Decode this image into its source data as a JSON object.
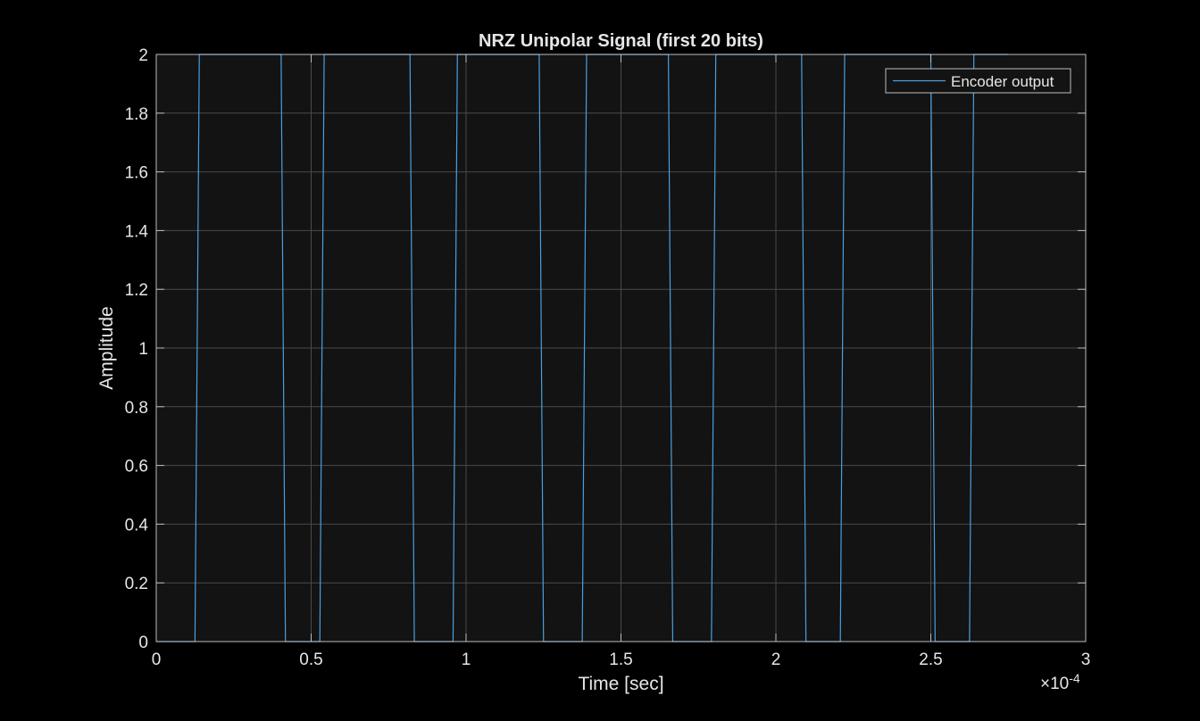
{
  "chart_data": {
    "type": "line",
    "title": "NRZ Unipolar Signal (first 20 bits)",
    "xlabel": "Time [sec]",
    "ylabel": "Amplitude",
    "x_exponent_label": "×10",
    "x_exponent_power": "-4",
    "xlim": [
      0,
      3
    ],
    "ylim": [
      0,
      2
    ],
    "x_ticks": [
      0,
      0.5,
      1,
      1.5,
      2,
      2.5,
      3
    ],
    "x_tick_labels": [
      "0",
      "0.5",
      "1",
      "1.5",
      "2",
      "2.5",
      "3"
    ],
    "y_ticks": [
      0,
      0.2,
      0.4,
      0.6,
      0.8,
      1,
      1.2,
      1.4,
      1.6,
      1.8,
      2
    ],
    "y_tick_labels": [
      "0",
      "0.2",
      "0.4",
      "0.6",
      "0.8",
      "1",
      "1.2",
      "1.4",
      "1.6",
      "1.8",
      "2"
    ],
    "grid": true,
    "legend_position": "top-right",
    "series": [
      {
        "name": "Encoder output",
        "color": "#4a9fe0",
        "x": [
          0,
          0.125,
          0.139,
          0.403,
          0.417,
          0.528,
          0.542,
          0.819,
          0.833,
          0.958,
          0.972,
          1.236,
          1.25,
          1.375,
          1.389,
          1.653,
          1.667,
          1.792,
          1.806,
          2.083,
          2.097,
          2.208,
          2.222,
          2.5,
          2.514,
          2.625,
          2.639,
          2.75
        ],
        "y": [
          0,
          0,
          2,
          2,
          0,
          0,
          2,
          2,
          0,
          0,
          2,
          2,
          0,
          0,
          2,
          2,
          0,
          0,
          2,
          2,
          0,
          0,
          2,
          2,
          0,
          0,
          2,
          2
        ]
      }
    ],
    "colors": {
      "figure_background": "#000000",
      "axes_background": "#131313",
      "grid": "#4a4a4a",
      "axes_edge": "#bdbdbd",
      "text": "#e6e6e6"
    }
  }
}
